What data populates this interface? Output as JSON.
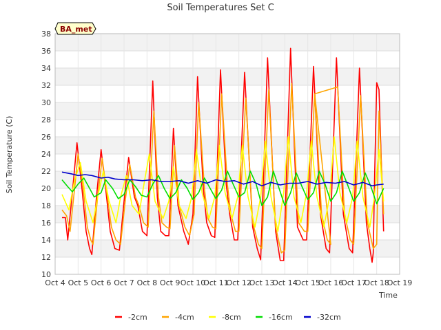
{
  "chart_data": {
    "type": "line",
    "title": "Soil Temperatures Set C",
    "xlabel": "Time",
    "ylabel": "Soil Temperature (C)",
    "site_label": "BA_met",
    "xlim": [
      4,
      19
    ],
    "ylim": [
      10,
      38
    ],
    "x_ticks": [
      {
        "value": 4,
        "label": "Oct 4"
      },
      {
        "value": 5,
        "label": "Oct 5"
      },
      {
        "value": 6,
        "label": "Oct 6"
      },
      {
        "value": 7,
        "label": "Oct 7"
      },
      {
        "value": 8,
        "label": "Oct 8"
      },
      {
        "value": 9,
        "label": "Oct 9"
      },
      {
        "value": 10,
        "label": "Oct 10"
      },
      {
        "value": 11,
        "label": "Oct 11"
      },
      {
        "value": 12,
        "label": "Oct 12"
      },
      {
        "value": 13,
        "label": "Oct 13"
      },
      {
        "value": 14,
        "label": "Oct 14"
      },
      {
        "value": 15,
        "label": "Oct 15"
      },
      {
        "value": 16,
        "label": "Oct 16"
      },
      {
        "value": 17,
        "label": "Oct 17"
      },
      {
        "value": 18,
        "label": "Oct 18"
      },
      {
        "value": 19,
        "label": "Oct 19"
      }
    ],
    "y_ticks": [
      10,
      12,
      14,
      16,
      18,
      20,
      22,
      24,
      26,
      28,
      30,
      32,
      34,
      36,
      38
    ],
    "grid": true,
    "legend_position": "bottom",
    "series": [
      {
        "name": "-2cm",
        "color": "#ff0000",
        "x": [
          4.3,
          4.45,
          4.55,
          4.75,
          4.95,
          5.15,
          5.35,
          5.5,
          5.6,
          5.8,
          6.0,
          6.2,
          6.4,
          6.6,
          6.8,
          7.0,
          7.2,
          7.45,
          7.6,
          7.8,
          8.0,
          8.25,
          8.45,
          8.6,
          8.8,
          8.95,
          9.15,
          9.35,
          9.6,
          9.8,
          10.0,
          10.2,
          10.45,
          10.6,
          10.8,
          10.95,
          11.2,
          11.45,
          11.6,
          11.8,
          11.95,
          12.25,
          12.6,
          12.8,
          12.95,
          13.25,
          13.6,
          13.8,
          13.95,
          14.25,
          14.55,
          14.8,
          14.95,
          15.25,
          15.55,
          15.8,
          15.95,
          16.25,
          16.55,
          16.8,
          16.95,
          17.25,
          17.55,
          17.7,
          17.8,
          17.85,
          17.9,
          18.0,
          18.1,
          18.3
        ],
        "y": [
          16.6,
          16.6,
          14.0,
          19.5,
          25.3,
          20.5,
          15.0,
          13.0,
          12.3,
          19.0,
          24.5,
          20.0,
          15.0,
          13.0,
          12.8,
          18.5,
          23.6,
          19.0,
          18.0,
          15.0,
          14.5,
          32.5,
          19.0,
          15.0,
          14.5,
          14.5,
          27.0,
          18.0,
          15.0,
          13.5,
          17.0,
          33.0,
          20.0,
          16.0,
          14.5,
          14.3,
          33.8,
          20.5,
          17.0,
          14.0,
          14.0,
          33.5,
          15.5,
          13.0,
          11.7,
          35.2,
          15.0,
          11.6,
          11.6,
          36.3,
          15.5,
          14.0,
          14.0,
          34.2,
          17.0,
          13.0,
          12.5,
          35.2,
          17.0,
          13.0,
          12.5,
          34.0,
          16.0,
          13.0,
          11.4,
          12.5,
          20.0,
          32.3,
          31.5,
          15.0
        ]
      },
      {
        "name": "-4cm",
        "color": "#ffa500",
        "x": [
          4.3,
          4.5,
          4.65,
          4.85,
          5.0,
          5.2,
          5.4,
          5.55,
          5.65,
          5.85,
          6.05,
          6.25,
          6.45,
          6.65,
          6.85,
          7.05,
          7.25,
          7.5,
          7.65,
          7.85,
          8.05,
          8.3,
          8.5,
          8.65,
          8.85,
          9.0,
          9.2,
          9.4,
          9.65,
          9.85,
          10.05,
          10.25,
          10.5,
          10.65,
          10.85,
          11.0,
          11.25,
          11.5,
          11.65,
          11.85,
          12.0,
          12.3,
          12.6,
          12.85,
          13.0,
          13.3,
          13.6,
          13.85,
          14.0,
          14.3,
          14.6,
          14.85,
          15.0,
          15.3,
          15.6,
          15.85,
          16.0,
          15.3,
          16.3,
          16.6,
          16.85,
          17.0,
          17.3,
          17.6,
          17.85,
          18.0,
          18.1,
          18.3
        ],
        "y": [
          17.5,
          16.8,
          15.0,
          20.0,
          24.0,
          20.5,
          15.5,
          14.0,
          13.5,
          19.0,
          23.5,
          19.5,
          15.5,
          14.0,
          13.5,
          18.5,
          22.8,
          19.0,
          18.0,
          16.0,
          15.5,
          29.0,
          19.0,
          16.0,
          15.5,
          15.3,
          25.0,
          18.0,
          15.5,
          14.5,
          17.0,
          30.0,
          20.0,
          16.5,
          15.5,
          15.3,
          31.0,
          20.5,
          17.0,
          15.0,
          15.0,
          30.5,
          16.0,
          13.5,
          13.0,
          31.5,
          15.5,
          12.5,
          12.8,
          32.2,
          16.0,
          15.0,
          15.0,
          31.0,
          17.0,
          14.0,
          13.5,
          31.0,
          31.8,
          17.0,
          14.0,
          13.5,
          30.8,
          16.0,
          13.0,
          13.5,
          29.0,
          17.0
        ]
      },
      {
        "name": "-8cm",
        "color": "#ffff00",
        "x": [
          4.3,
          4.6,
          4.85,
          5.1,
          5.35,
          5.65,
          5.85,
          6.1,
          6.35,
          6.65,
          6.85,
          7.1,
          7.35,
          7.65,
          7.9,
          8.1,
          8.35,
          8.7,
          8.95,
          9.15,
          9.4,
          9.7,
          9.95,
          10.15,
          10.4,
          10.7,
          10.95,
          11.15,
          11.4,
          11.7,
          11.95,
          12.15,
          12.4,
          12.7,
          12.95,
          13.15,
          13.4,
          13.7,
          13.95,
          14.15,
          14.4,
          14.7,
          14.95,
          15.15,
          15.4,
          15.7,
          15.95,
          16.15,
          16.4,
          16.7,
          16.95,
          17.15,
          17.4,
          17.7,
          17.9,
          18.1,
          18.3
        ],
        "y": [
          19.3,
          17.5,
          21.0,
          23.0,
          18.5,
          16.0,
          19.0,
          22.0,
          18.5,
          16.0,
          19.0,
          21.5,
          18.0,
          17.0,
          21.0,
          24.0,
          18.5,
          16.5,
          18.5,
          22.5,
          18.0,
          16.5,
          19.0,
          24.5,
          19.5,
          16.5,
          19.0,
          25.0,
          19.5,
          16.5,
          19.0,
          25.0,
          19.0,
          15.5,
          19.0,
          25.5,
          19.0,
          15.0,
          19.5,
          26.0,
          19.0,
          16.0,
          19.5,
          25.5,
          19.0,
          15.5,
          19.0,
          26.0,
          19.5,
          16.0,
          19.0,
          25.5,
          19.0,
          15.5,
          19.0,
          24.5,
          18.5
        ]
      },
      {
        "name": "-16cm",
        "color": "#00dd00",
        "x": [
          4.3,
          4.55,
          4.75,
          5.0,
          5.25,
          5.5,
          5.7,
          6.0,
          6.2,
          6.5,
          6.75,
          7.0,
          7.25,
          7.5,
          7.75,
          8.0,
          8.25,
          8.5,
          8.75,
          9.0,
          9.25,
          9.5,
          9.75,
          10.0,
          10.25,
          10.5,
          10.75,
          11.0,
          11.25,
          11.5,
          11.75,
          12.0,
          12.25,
          12.5,
          12.75,
          13.0,
          13.25,
          13.5,
          13.75,
          14.0,
          14.25,
          14.5,
          14.75,
          15.0,
          15.25,
          15.5,
          15.75,
          16.0,
          16.25,
          16.5,
          16.75,
          17.0,
          17.25,
          17.5,
          17.75,
          18.0,
          18.3
        ],
        "y": [
          21.0,
          20.2,
          19.6,
          20.5,
          21.2,
          20.0,
          19.0,
          19.5,
          21.0,
          20.0,
          18.8,
          19.3,
          21.0,
          20.2,
          19.2,
          19.0,
          20.5,
          21.5,
          20.0,
          18.8,
          19.5,
          21.0,
          20.0,
          18.7,
          19.5,
          21.2,
          20.0,
          18.8,
          19.8,
          22.0,
          20.5,
          19.0,
          19.5,
          22.0,
          20.5,
          18.0,
          19.0,
          22.0,
          20.0,
          18.0,
          19.5,
          21.8,
          20.2,
          18.7,
          19.5,
          22.0,
          20.5,
          18.5,
          19.5,
          22.0,
          20.3,
          18.5,
          19.5,
          21.8,
          20.2,
          18.2,
          20.0
        ]
      },
      {
        "name": "-32cm",
        "color": "#0000cc",
        "x": [
          4.3,
          4.7,
          5.0,
          5.3,
          5.6,
          6.0,
          6.3,
          6.6,
          7.0,
          7.4,
          7.8,
          8.2,
          8.6,
          9.0,
          9.4,
          9.8,
          10.2,
          10.6,
          11.0,
          11.4,
          11.8,
          12.2,
          12.6,
          13.0,
          13.4,
          13.8,
          14.2,
          14.6,
          15.0,
          15.4,
          15.8,
          16.2,
          16.6,
          17.0,
          17.4,
          17.8,
          18.0,
          18.3
        ],
        "y": [
          21.9,
          21.7,
          21.5,
          21.6,
          21.5,
          21.2,
          21.3,
          21.1,
          21.0,
          21.0,
          20.9,
          21.0,
          20.8,
          20.8,
          20.9,
          20.6,
          20.9,
          20.6,
          21.0,
          20.8,
          20.9,
          20.5,
          20.8,
          20.3,
          20.7,
          20.4,
          20.6,
          20.6,
          20.8,
          20.5,
          20.7,
          20.6,
          20.8,
          20.4,
          20.7,
          20.3,
          20.4,
          20.5
        ]
      }
    ]
  }
}
